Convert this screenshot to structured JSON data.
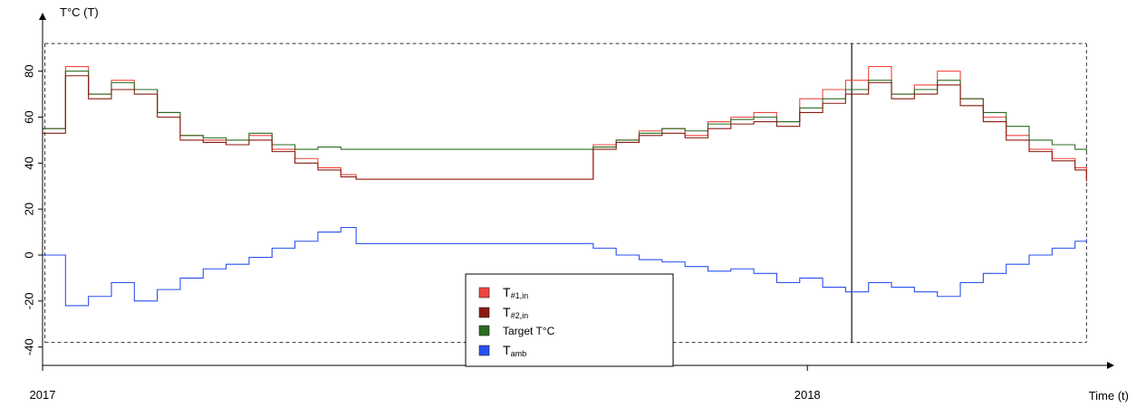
{
  "chart_data": {
    "type": "line",
    "title": "",
    "ylabel": "T°C (T)",
    "xlabel": "Time (t)",
    "ylim": [
      -48,
      96
    ],
    "yticks": [
      -40,
      -20,
      0,
      20,
      40,
      60,
      80
    ],
    "ytick_labels": [
      "-40",
      "-20",
      "0",
      "20",
      "40",
      "60",
      "80"
    ],
    "xlim": [
      2017.0,
      2018.38
    ],
    "xticks": [
      2017,
      2018
    ],
    "xtick_labels": [
      "2017",
      "2018"
    ],
    "reference_lines": {
      "upper": 92,
      "lower": -38,
      "left_x": 2017.003,
      "right_x": 2018.365,
      "marker_x": 2018.058
    },
    "grid": false,
    "legend_placement": "bottom-center",
    "step_plot": true,
    "series": [
      {
        "key": "t1",
        "name": "T#1,in",
        "color": "#f0453c",
        "x": [
          2017.0,
          2017.03,
          2017.06,
          2017.09,
          2017.12,
          2017.15,
          2017.18,
          2017.21,
          2017.24,
          2017.27,
          2017.3,
          2017.33,
          2017.36,
          2017.39,
          2017.41,
          2017.42,
          2017.45,
          2017.48,
          2017.51,
          2017.54,
          2017.57,
          2017.6,
          2017.63,
          2017.66,
          2017.69,
          2017.72,
          2017.75,
          2017.78,
          2017.81,
          2017.84,
          2017.87,
          2017.9,
          2017.93,
          2017.96,
          2017.99,
          2018.02,
          2018.05,
          2018.08,
          2018.11,
          2018.14,
          2018.17,
          2018.2,
          2018.23,
          2018.26,
          2018.29,
          2018.32,
          2018.35,
          2018.365
        ],
        "values": [
          55,
          82,
          70,
          76,
          72,
          62,
          52,
          50,
          48,
          52,
          46,
          42,
          38,
          35,
          33,
          33,
          33,
          33,
          33,
          33,
          33,
          33,
          33,
          33,
          33,
          48,
          50,
          54,
          55,
          52,
          58,
          60,
          62,
          58,
          68,
          72,
          76,
          82,
          70,
          74,
          80,
          68,
          60,
          52,
          46,
          42,
          38,
          33
        ]
      },
      {
        "key": "t2",
        "name": "T#2,in",
        "color": "#8b1a12",
        "x": [
          2017.0,
          2017.03,
          2017.06,
          2017.09,
          2017.12,
          2017.15,
          2017.18,
          2017.21,
          2017.24,
          2017.27,
          2017.3,
          2017.33,
          2017.36,
          2017.39,
          2017.41,
          2017.42,
          2017.45,
          2017.48,
          2017.51,
          2017.54,
          2017.57,
          2017.6,
          2017.63,
          2017.66,
          2017.69,
          2017.72,
          2017.75,
          2017.78,
          2017.81,
          2017.84,
          2017.87,
          2017.9,
          2017.93,
          2017.96,
          2017.99,
          2018.02,
          2018.05,
          2018.08,
          2018.11,
          2018.14,
          2018.17,
          2018.2,
          2018.23,
          2018.26,
          2018.29,
          2018.32,
          2018.35,
          2018.365
        ],
        "values": [
          53,
          78,
          68,
          72,
          70,
          60,
          50,
          49,
          48,
          50,
          45,
          40,
          37,
          34,
          33,
          33,
          33,
          33,
          33,
          33,
          33,
          33,
          33,
          33,
          33,
          46,
          49,
          52,
          53,
          51,
          55,
          57,
          58,
          56,
          62,
          66,
          70,
          75,
          68,
          70,
          74,
          65,
          58,
          50,
          45,
          41,
          37,
          32
        ]
      },
      {
        "key": "target",
        "name": "Target T°C",
        "color": "#2a6b1f",
        "x": [
          2017.0,
          2017.03,
          2017.06,
          2017.09,
          2017.12,
          2017.15,
          2017.18,
          2017.21,
          2017.24,
          2017.27,
          2017.3,
          2017.33,
          2017.36,
          2017.39,
          2017.41,
          2017.42,
          2017.45,
          2017.48,
          2017.51,
          2017.54,
          2017.57,
          2017.6,
          2017.63,
          2017.66,
          2017.69,
          2017.72,
          2017.75,
          2017.78,
          2017.81,
          2017.84,
          2017.87,
          2017.9,
          2017.93,
          2017.96,
          2017.99,
          2018.02,
          2018.05,
          2018.08,
          2018.11,
          2018.14,
          2018.17,
          2018.2,
          2018.23,
          2018.26,
          2018.29,
          2018.32,
          2018.35,
          2018.365
        ],
        "values": [
          55,
          80,
          70,
          75,
          72,
          62,
          52,
          51,
          50,
          53,
          48,
          46,
          47,
          46,
          46,
          46,
          46,
          46,
          46,
          46,
          46,
          46,
          46,
          46,
          46,
          47,
          50,
          53,
          55,
          54,
          57,
          59,
          60,
          58,
          64,
          68,
          72,
          76,
          70,
          72,
          76,
          68,
          62,
          56,
          50,
          48,
          46,
          45
        ]
      },
      {
        "key": "tamb",
        "name": "Tamb",
        "color": "#2a50f0",
        "x": [
          2017.0,
          2017.03,
          2017.06,
          2017.09,
          2017.12,
          2017.15,
          2017.18,
          2017.21,
          2017.24,
          2017.27,
          2017.3,
          2017.33,
          2017.36,
          2017.39,
          2017.41,
          2017.42,
          2017.45,
          2017.48,
          2017.51,
          2017.54,
          2017.57,
          2017.6,
          2017.63,
          2017.66,
          2017.69,
          2017.72,
          2017.75,
          2017.78,
          2017.81,
          2017.84,
          2017.87,
          2017.9,
          2017.93,
          2017.96,
          2017.99,
          2018.02,
          2018.05,
          2018.08,
          2018.11,
          2018.14,
          2018.17,
          2018.2,
          2018.23,
          2018.26,
          2018.29,
          2018.32,
          2018.35,
          2018.365
        ],
        "values": [
          0,
          -22,
          -18,
          -12,
          -20,
          -15,
          -10,
          -6,
          -4,
          -1,
          3,
          6,
          10,
          12,
          5,
          5,
          5,
          5,
          5,
          5,
          5,
          5,
          5,
          5,
          5,
          3,
          0,
          -2,
          -3,
          -5,
          -7,
          -6,
          -8,
          -12,
          -10,
          -14,
          -16,
          -12,
          -14,
          -16,
          -18,
          -12,
          -8,
          -4,
          0,
          3,
          6,
          7
        ]
      }
    ]
  },
  "legend": {
    "items": [
      {
        "main": "T",
        "sub": "#1,in",
        "color": "#f0453c"
      },
      {
        "main": "T",
        "sub": "#2,in",
        "color": "#8b1a12"
      },
      {
        "main": "Target T°C",
        "sub": "",
        "color": "#2a6b1f"
      },
      {
        "main": "T",
        "sub": "amb",
        "color": "#2a50f0"
      }
    ]
  }
}
